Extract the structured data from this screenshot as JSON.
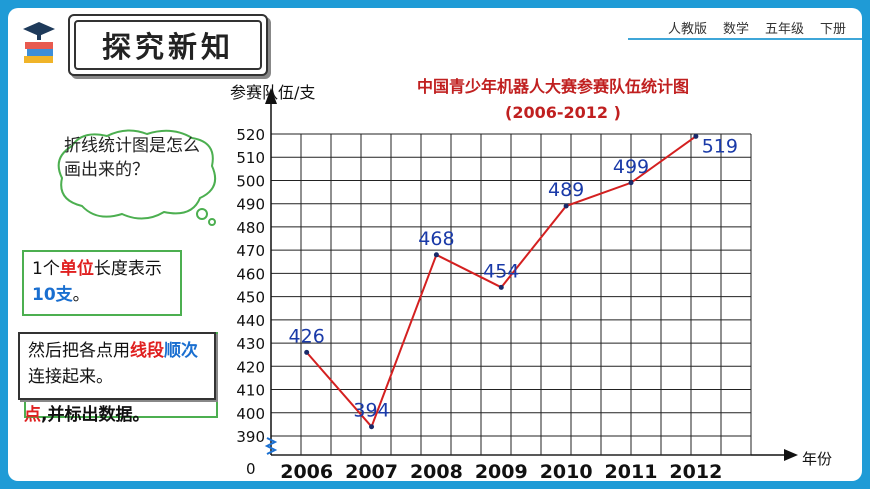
{
  "header": {
    "title": "探究新知",
    "meta": [
      "人教版",
      "数学",
      "五年级",
      "下册"
    ]
  },
  "bubble": {
    "text": "折线统计图是怎么画出来的？"
  },
  "notes": {
    "unit_prefix": "1个",
    "unit_key": "单位",
    "unit_mid": "长度表示",
    "unit_value": "10支",
    "unit_end": "。",
    "connect_prefix": "然后把各点用",
    "connect_key1": "线段",
    "connect_key2": "顺次",
    "connect_end": "连接起来。",
    "back_key": "点",
    "back_end": ",并标出数据。"
  },
  "chart_data": {
    "type": "line",
    "title": "中国青少年机器人大赛参赛队伍统计图",
    "subtitle": "(2006-2012 )",
    "xlabel": "年份",
    "ylabel": "参赛队伍/支",
    "x": [
      "2006",
      "2007",
      "2008",
      "2009",
      "2010",
      "2011",
      "2012"
    ],
    "series": [
      {
        "values": [
          426,
          394,
          468,
          454,
          489,
          499,
          519
        ]
      }
    ],
    "data_labels": [
      "426",
      "394",
      "468",
      "454",
      "489",
      "499",
      "519"
    ],
    "y_ticks": [
      "390",
      "400",
      "410",
      "420",
      "430",
      "440",
      "450",
      "460",
      "470",
      "480",
      "490",
      "500",
      "510",
      "520"
    ],
    "y_zero_label": "0",
    "ylim": [
      390,
      520
    ],
    "axis_break": true,
    "grid": true,
    "line_color": "#d42020",
    "label_color": "#1a3aa8"
  }
}
